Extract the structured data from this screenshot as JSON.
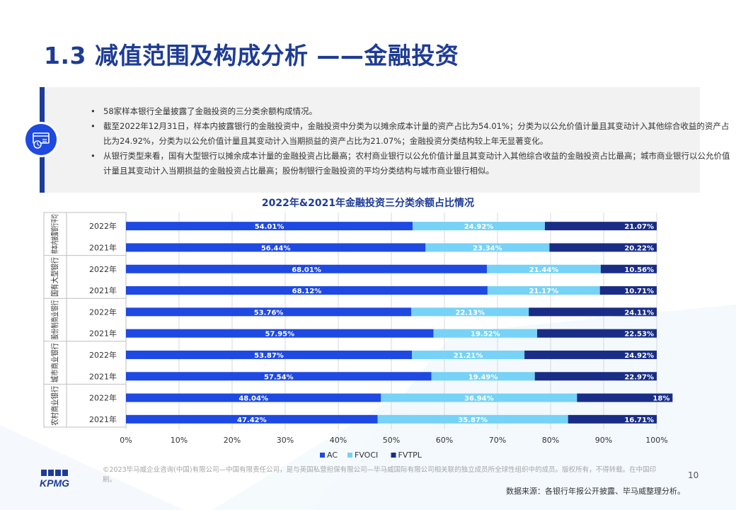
{
  "title": "1.3 减值范围及构成分析 ——金融投资",
  "summary": {
    "bullets": [
      "58家样本银行全量披露了金融投资的三分类余额构成情况。",
      "截至2022年12月31日，样本内披露银行的金融投资中，金融投资中分类为以摊余成本计量的资产占比为54.01%；分类为以公允价值计量且其变动计入其他综合收益的资产占比为24.92%，分类为以公允价值计量且其变动计入当期损益的资产占比为21.07%；金融投资分类结构较上年无显著变化。",
      "从银行类型来看，国有大型银行以摊余成本计量的金融投资占比最高；农村商业银行以公允价值计量且其变动计入其他综合收益的金融投资占比最高；城市商业银行以公允价值计量且其变动计入当期损益的金融投资占比最高；股份制银行金融投资的平均分类结构与城市商业银行相似。"
    ]
  },
  "footer": {
    "copyright": "©2023毕马威企业咨询(中国)有限公司—中国有限责任公司，是与英国私营担保有限公司—毕马威国际有限公司相关联的独立成员所全球性组织中的成员。版权所有，不得转载。在中国印刷。",
    "page_number": "10",
    "source": "数据来源：各银行年报公开披露、毕马威整理分析。",
    "logo": "KPMG"
  },
  "colors": {
    "AC": "#1e49e2",
    "FVOCI": "#76d2f6",
    "FVTPL": "#1a2d86",
    "title": "#1e3c96"
  },
  "chart_data": {
    "type": "bar",
    "orientation": "horizontal",
    "stacked": "percent",
    "title": "2022年&2021年金融投资三分类余额占比情况",
    "groups": [
      {
        "name": "样本内披露银行平均",
        "years": [
          "2022年",
          "2021年"
        ]
      },
      {
        "name": "国有大型银行",
        "years": [
          "2022年",
          "2021年"
        ]
      },
      {
        "name": "股份制商业银行",
        "years": [
          "2022年",
          "2021年"
        ]
      },
      {
        "name": "城市商业银行",
        "years": [
          "2022年",
          "2021年"
        ]
      },
      {
        "name": "农村商业银行",
        "years": [
          "2022年",
          "2021年"
        ]
      }
    ],
    "series": [
      {
        "name": "AC",
        "values": [
          54.01,
          56.44,
          68.01,
          68.12,
          53.76,
          57.95,
          53.87,
          57.54,
          48.04,
          47.42
        ],
        "labels": [
          "54.01%",
          "56.44%",
          "68.01%",
          "68.12%",
          "53.76%",
          "57.95%",
          "53.87%",
          "57.54%",
          "48.04%",
          "47.42%"
        ]
      },
      {
        "name": "FVOCI",
        "values": [
          24.92,
          23.34,
          21.44,
          21.17,
          22.13,
          19.52,
          21.21,
          19.49,
          36.94,
          35.87
        ],
        "labels": [
          "24.92%",
          "23.34%",
          "21.44%",
          "21.17%",
          "22.13%",
          "19.52%",
          "21.21%",
          "19.49%",
          "36.94%",
          "35.87%"
        ]
      },
      {
        "name": "FVTPL",
        "values": [
          21.07,
          20.22,
          10.56,
          10.71,
          24.11,
          22.53,
          24.92,
          22.97,
          18,
          16.71
        ],
        "labels": [
          "21.07%",
          "20.22%",
          "10.56%",
          "10.71%",
          "24.11%",
          "22.53%",
          "24.92%",
          "22.97%",
          "18%",
          "16.71%"
        ]
      }
    ],
    "xlim": [
      0,
      100
    ],
    "xticks": [
      "0%",
      "10%",
      "20%",
      "30%",
      "40%",
      "50%",
      "60%",
      "70%",
      "80%",
      "90%",
      "100%"
    ],
    "legend": {
      "position": "bottom",
      "labels": [
        "AC",
        "FVOCI",
        "FVTPL"
      ]
    }
  }
}
